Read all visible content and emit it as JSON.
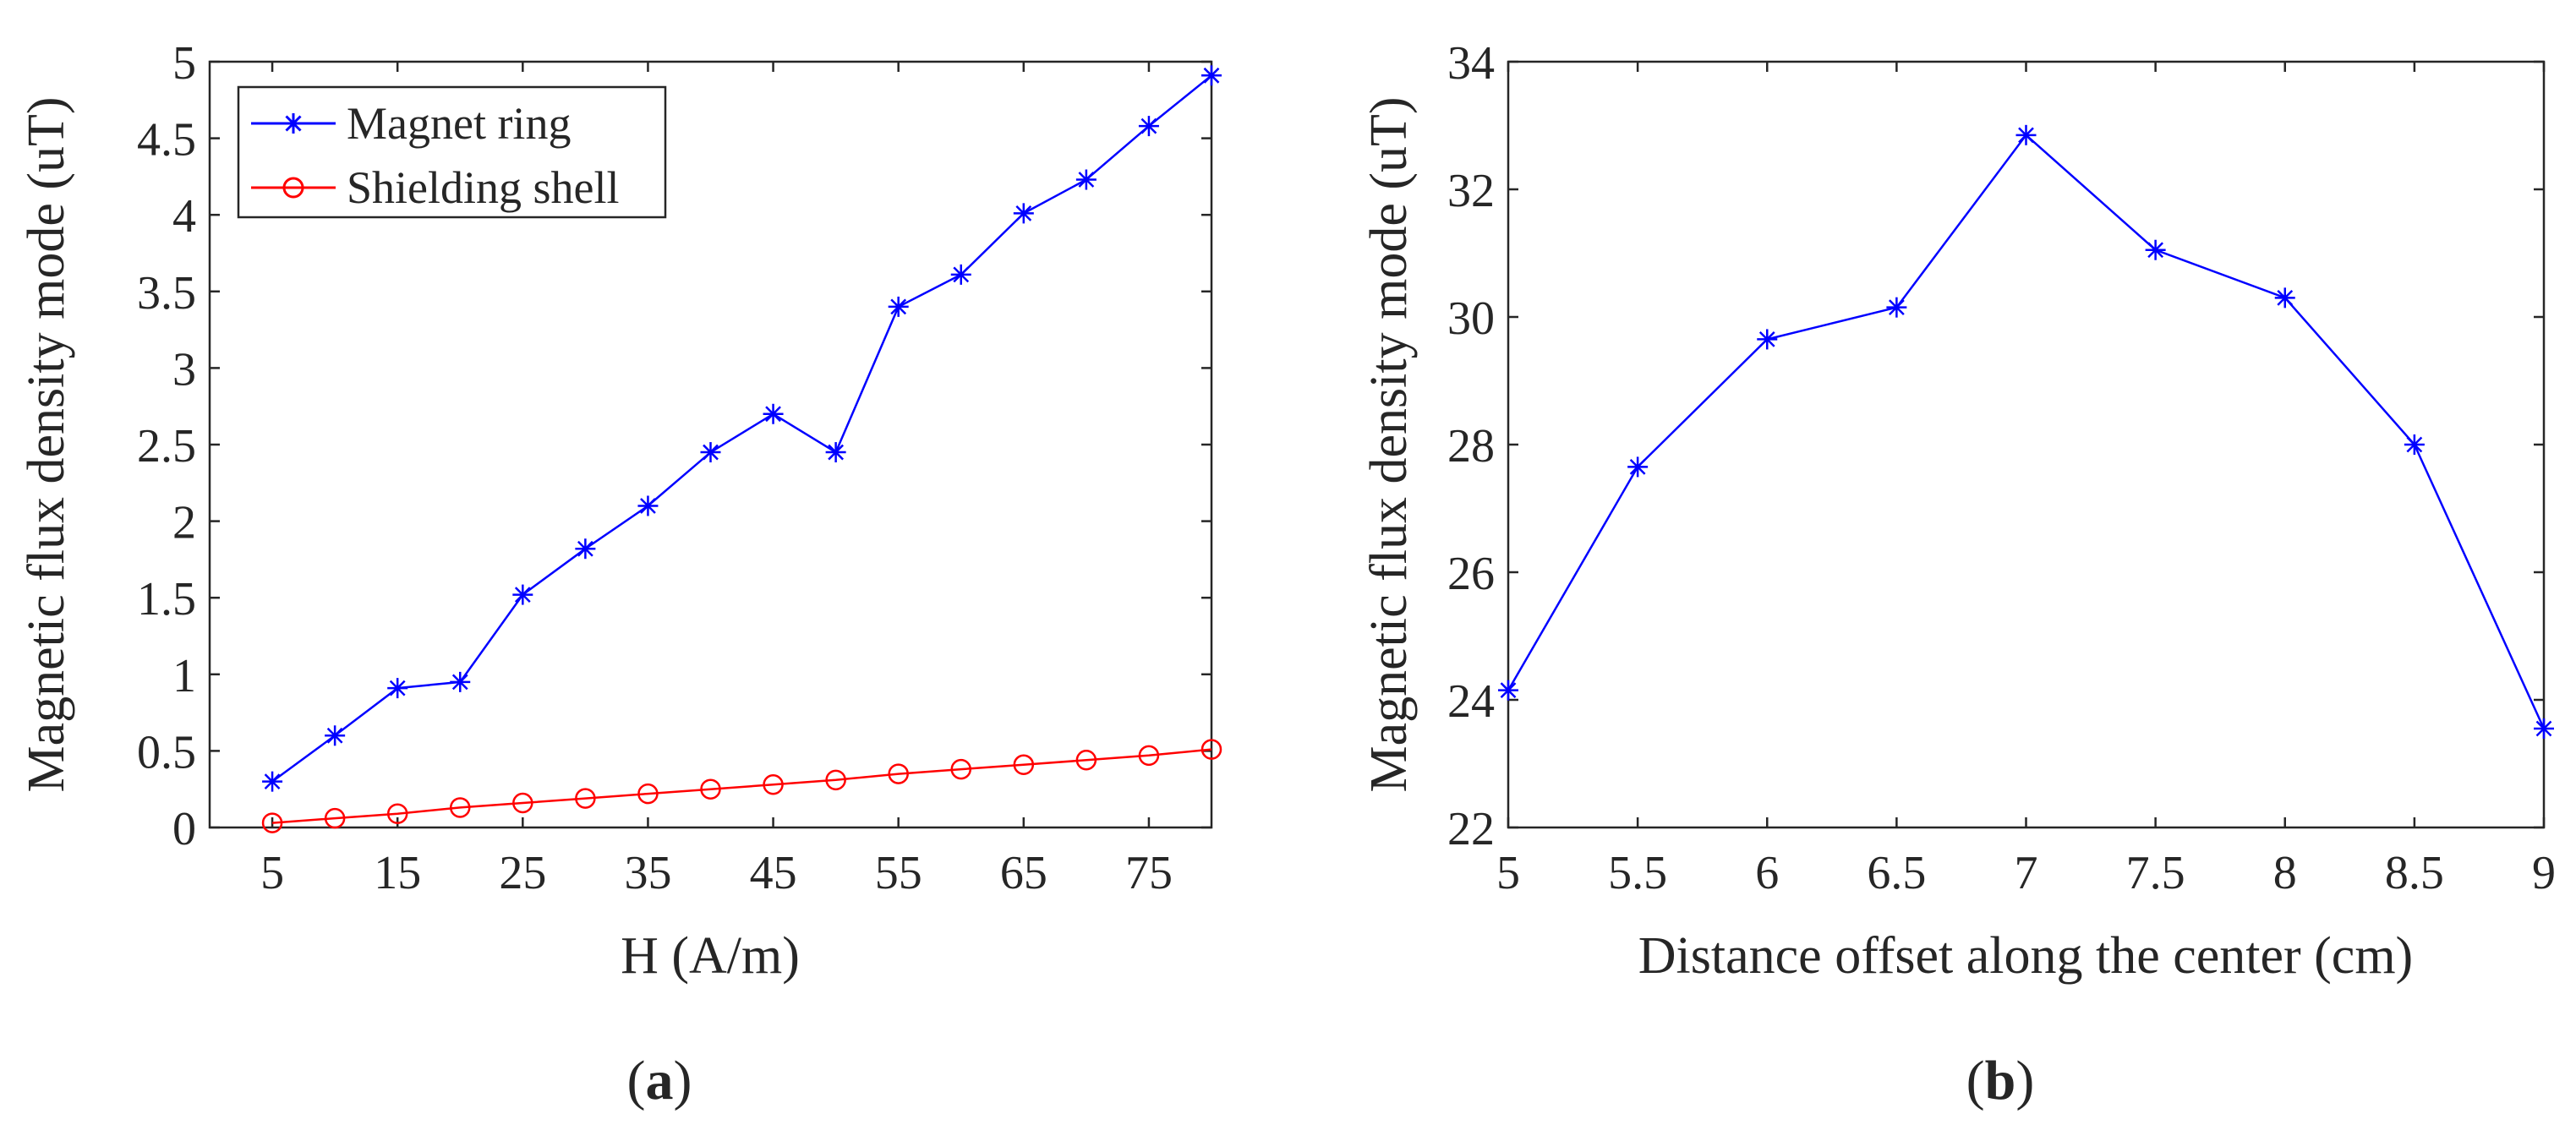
{
  "chart_data": [
    {
      "type": "line",
      "panel_label": {
        "open": "(",
        "letter": "a",
        "close": ")"
      },
      "xlabel": "H (A/m)",
      "ylabel": "Magnetic flux density mode (uT)",
      "xlim": [
        0,
        80
      ],
      "ylim": [
        0,
        5
      ],
      "x_ticks": [
        5,
        15,
        25,
        35,
        45,
        55,
        65,
        75
      ],
      "x_tick_labels": [
        "5",
        "15",
        "25",
        "35",
        "45",
        "55",
        "65",
        "75"
      ],
      "y_ticks": [
        0,
        0.5,
        1,
        1.5,
        2,
        2.5,
        3,
        3.5,
        4,
        4.5,
        5
      ],
      "y_tick_labels": [
        "0",
        "0.5",
        "1",
        "1.5",
        "2",
        "2.5",
        "3",
        "3.5",
        "4",
        "4.5",
        "5"
      ],
      "legend_position": "top-left",
      "grid": false,
      "series": [
        {
          "name": "Magnet ring",
          "color": "#0000ff",
          "marker": "asterisk",
          "x": [
            5,
            10,
            15,
            20,
            25,
            30,
            35,
            40,
            45,
            50,
            55,
            60,
            65,
            70,
            75,
            80
          ],
          "values": [
            0.3,
            0.6,
            0.91,
            0.95,
            1.52,
            1.82,
            2.1,
            2.45,
            2.7,
            2.45,
            3.4,
            3.61,
            4.01,
            4.23,
            4.58,
            4.91
          ]
        },
        {
          "name": "Shielding shell",
          "color": "#ff0000",
          "marker": "circle",
          "x": [
            5,
            10,
            15,
            20,
            25,
            30,
            35,
            40,
            45,
            50,
            55,
            60,
            65,
            70,
            75,
            80
          ],
          "values": [
            0.03,
            0.06,
            0.09,
            0.13,
            0.16,
            0.19,
            0.22,
            0.25,
            0.28,
            0.31,
            0.35,
            0.38,
            0.41,
            0.44,
            0.47,
            0.51
          ]
        }
      ]
    },
    {
      "type": "line",
      "panel_label": {
        "open": "(",
        "letter": "b",
        "close": ")"
      },
      "xlabel": "Distance offset along the center (cm)",
      "ylabel": "Magnetic flux density mode (uT)",
      "xlim": [
        5,
        9
      ],
      "ylim": [
        22,
        34
      ],
      "x_ticks": [
        5,
        5.5,
        6,
        6.5,
        7,
        7.5,
        8,
        8.5,
        9
      ],
      "x_tick_labels": [
        "5",
        "5.5",
        "6",
        "6.5",
        "7",
        "7.5",
        "8",
        "8.5",
        "9"
      ],
      "y_ticks": [
        22,
        24,
        26,
        28,
        30,
        32,
        34
      ],
      "y_tick_labels": [
        "22",
        "24",
        "26",
        "28",
        "30",
        "32",
        "34"
      ],
      "grid": false,
      "series": [
        {
          "name": "",
          "color": "#0000ff",
          "marker": "asterisk",
          "x": [
            5,
            5.5,
            6,
            6.5,
            7,
            7.5,
            8,
            8.5,
            9
          ],
          "values": [
            24.15,
            27.65,
            29.65,
            30.15,
            32.85,
            31.05,
            30.3,
            28.0,
            23.55
          ]
        }
      ]
    }
  ]
}
